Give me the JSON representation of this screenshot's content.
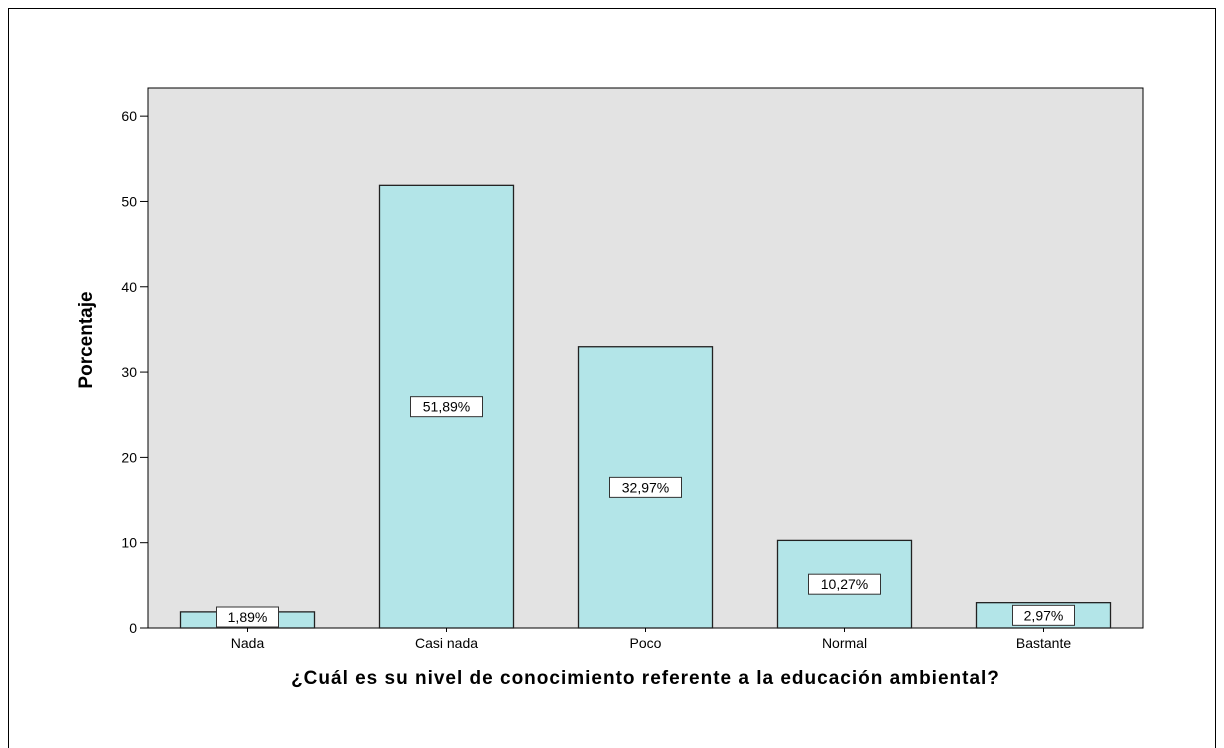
{
  "chart_data": {
    "type": "bar",
    "categories": [
      "Nada",
      "Casi nada",
      "Poco",
      "Normal",
      "Bastante"
    ],
    "values": [
      1.89,
      51.89,
      32.97,
      10.27,
      2.97
    ],
    "data_labels": [
      "1,89%",
      "51,89%",
      "32,97%",
      "10,27%",
      "2,97%"
    ],
    "title": "",
    "xlabel": "¿Cuál es su nivel de conocimiento referente a la educación ambiental?",
    "ylabel": "Porcentaje",
    "ylim": [
      0,
      60
    ],
    "yticks": [
      0,
      10,
      20,
      30,
      40,
      50,
      60
    ],
    "grid": false,
    "colors": {
      "bar_fill": "#b3e5e8",
      "bar_stroke": "#222222",
      "plot_background": "#e3e3e3",
      "axis": "#000000"
    }
  }
}
